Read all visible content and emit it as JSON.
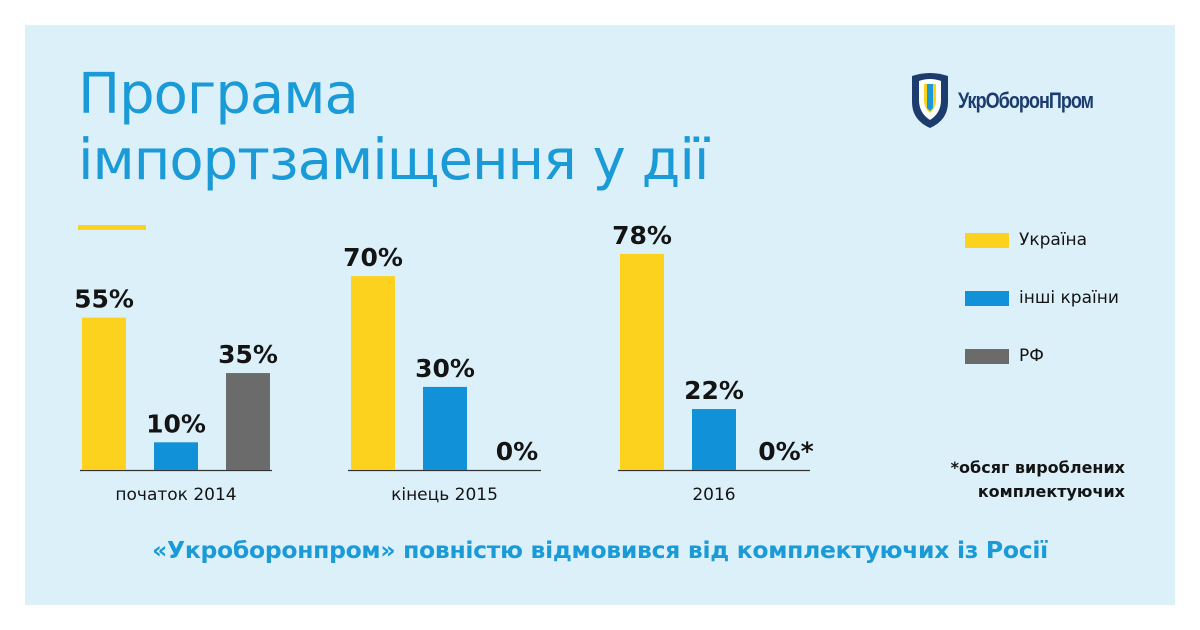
{
  "title": {
    "line1": "Програма",
    "line2": "імпортзаміщення у дії"
  },
  "logo": {
    "text": "УкрОборонПром",
    "icon": "shield-icon"
  },
  "colors": {
    "background": "#dcf0fa",
    "accent_blue": "#1a9ad6",
    "ukraine": "#fcd21e",
    "other": "#1191d8",
    "rf": "#6b6b6b"
  },
  "chart_data": {
    "type": "bar",
    "categories": [
      "початок 2014",
      "кінець 2015",
      "2016"
    ],
    "series": [
      {
        "name": "Україна",
        "values": [
          55,
          70,
          78
        ],
        "labels": [
          "55%",
          "70%",
          "78%"
        ],
        "color": "#fcd21e"
      },
      {
        "name": "інші країни",
        "values": [
          10,
          30,
          22
        ],
        "labels": [
          "10%",
          "30%",
          "22%"
        ],
        "color": "#1191d8"
      },
      {
        "name": "РФ",
        "values": [
          35,
          0,
          0
        ],
        "labels": [
          "35%",
          "0%",
          "0%*"
        ],
        "color": "#6b6b6b"
      }
    ],
    "ylim": [
      0,
      100
    ],
    "grid": false,
    "legend_position": "right"
  },
  "footnote": {
    "line1": "*обсяг вироблених",
    "line2": "комплектуючих"
  },
  "bottom_text": "«Укроборонпром» повністю відмовився від комплектуючих із Росії"
}
